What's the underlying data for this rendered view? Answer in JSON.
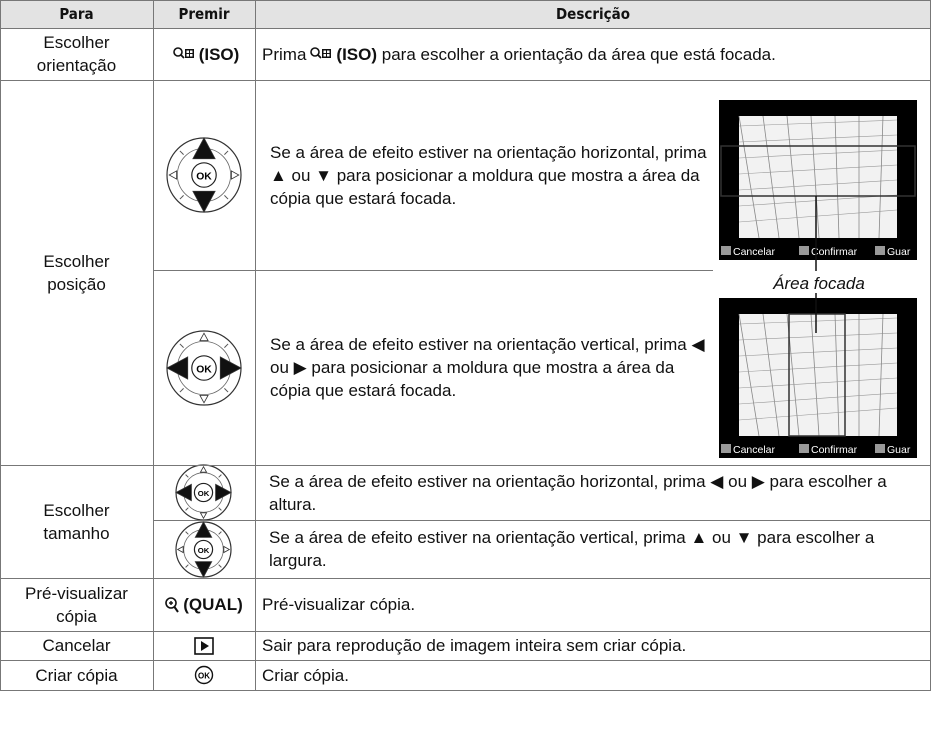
{
  "table": {
    "header": [
      "Para",
      "Premir",
      "Descrição"
    ],
    "ok_label": "OK",
    "rows": [
      {
        "action": "Escolher orientação",
        "key": "(ISO)",
        "desc_before": "Prima",
        "desc_key": "(ISO)",
        "desc_after": "para escolher a orientação da área que está focada."
      },
      {
        "action": "Escolher posição",
        "steps": [
          "Se a área de efeito estiver na orientação horizontal, prima ▲ ou ▼ para posicionar a moldura que mostra a área da cópia que estará focada.",
          "Se a área de efeito estiver na orientação vertical, prima ◀ ou ▶ para posicionar a moldura que mostra a área da cópia que estará focada."
        ],
        "screen_labels": [
          "Cancelar",
          "Confirmar",
          "Guar"
        ],
        "callout": "Área focada"
      },
      {
        "action": "Escolher tamanho",
        "steps": [
          "Se a área de efeito estiver na orientação horizontal, prima ◀ ou ▶ para escolher a altura.",
          "Se a área de efeito estiver na orientação vertical, prima ▲ ou ▼ para escolher a largura."
        ]
      },
      {
        "action": "Pré-visualizar cópia",
        "key": "(QUAL)",
        "description": "Pré-visualizar cópia."
      },
      {
        "action": "Cancelar",
        "description": "Sair para reprodução de imagem inteira sem criar cópia."
      },
      {
        "action": "Criar cópia",
        "description": "Criar cópia."
      }
    ]
  }
}
